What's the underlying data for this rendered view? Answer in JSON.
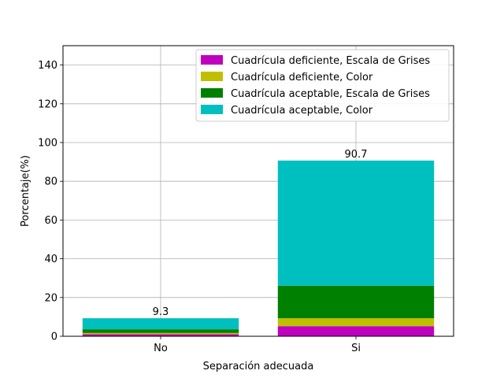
{
  "chart_data": {
    "type": "bar",
    "stacked": true,
    "categories": [
      "No",
      "Si"
    ],
    "series": [
      {
        "name": "Cuadrícula deficiente, Escala de Grises",
        "color": "#bf00bf",
        "values": [
          1.0,
          5.2
        ]
      },
      {
        "name": "Cuadrícula deficiente, Color",
        "color": "#bfbf00",
        "values": [
          0.7,
          4.1
        ]
      },
      {
        "name": "Cuadrícula aceptable, Escala de Grises",
        "color": "#008000",
        "values": [
          1.9,
          16.8
        ]
      },
      {
        "name": "Cuadrícula aceptable, Color",
        "color": "#00bfbf",
        "values": [
          5.7,
          64.6
        ]
      }
    ],
    "totals": [
      "9.3",
      "90.7"
    ],
    "xlabel": "Separación adecuada",
    "ylabel": "Porcentaje(%)",
    "ylim": [
      0,
      150
    ],
    "yticks": [
      "0",
      "20",
      "40",
      "60",
      "80",
      "100",
      "120",
      "140"
    ],
    "grid": true,
    "legend_position": "top-right"
  }
}
